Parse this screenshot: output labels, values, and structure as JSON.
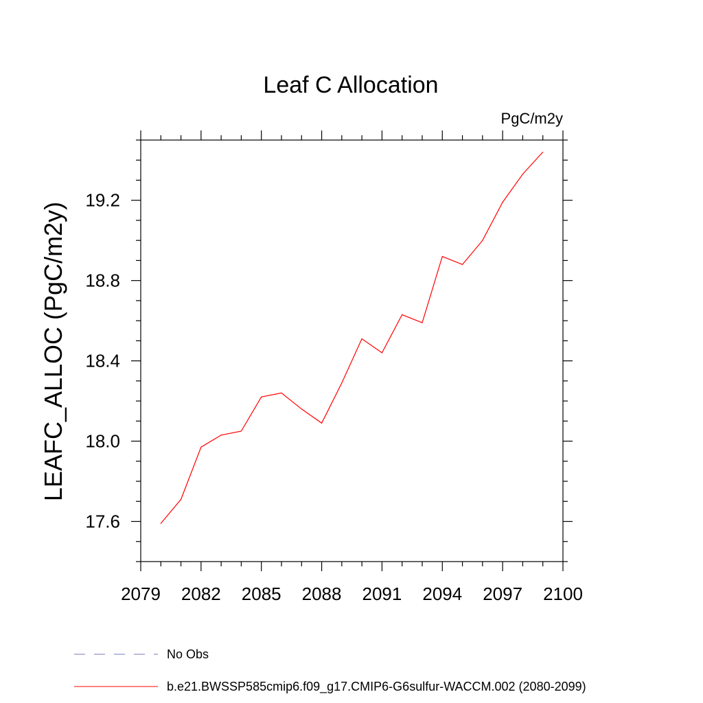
{
  "chart_data": {
    "type": "line",
    "title": "Leaf C Allocation",
    "units": "PgC/m2y",
    "ylabel": "LEAFC_ALLOC  (PgC/m2y)",
    "xlabel": "",
    "xlim": [
      2079,
      2100
    ],
    "ylim": [
      17.4,
      19.5
    ],
    "xticks": [
      2079,
      2082,
      2085,
      2088,
      2091,
      2094,
      2097,
      2100
    ],
    "xtick_labels": [
      "2079",
      "2082",
      "2085",
      "2088",
      "2091",
      "2094",
      "2097",
      "2100"
    ],
    "yticks": [
      17.6,
      18.0,
      18.4,
      18.8,
      19.2
    ],
    "ytick_labels": [
      "17.6",
      "18.0",
      "18.4",
      "18.8",
      "19.2"
    ],
    "grid": false,
    "legend_position": "bottom",
    "series": [
      {
        "name": "b.e21.BWSSP585cmip6.f09_g17.CMIP6-G6sulfur-WACCM.002 (2080-2099)",
        "color": "#ff0000",
        "style": "solid",
        "x": [
          2080,
          2081,
          2082,
          2083,
          2084,
          2085,
          2086,
          2087,
          2088,
          2089,
          2090,
          2091,
          2092,
          2093,
          2094,
          2095,
          2096,
          2097,
          2098,
          2099
        ],
        "y": [
          17.59,
          17.71,
          17.97,
          18.03,
          18.05,
          18.22,
          18.24,
          18.16,
          18.09,
          18.29,
          18.51,
          18.44,
          18.63,
          18.59,
          18.92,
          18.88,
          19.0,
          19.19,
          19.33,
          19.44
        ]
      }
    ],
    "legend": [
      {
        "label": "No Obs",
        "color": "#7777bb",
        "style": "dashed"
      },
      {
        "label": "b.e21.BWSSP585cmip6.f09_g17.CMIP6-G6sulfur-WACCM.002 (2080-2099)",
        "color": "#ff0000",
        "style": "solid"
      }
    ]
  }
}
